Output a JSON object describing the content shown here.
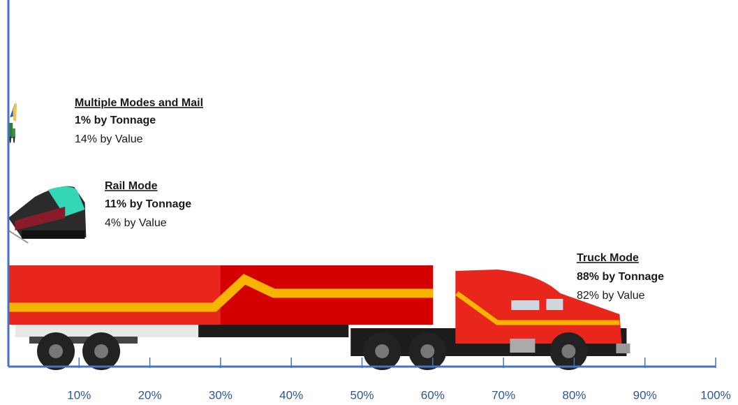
{
  "chart_data": {
    "type": "pictogram",
    "categories": [
      "Multiple Modes and Mail",
      "Rail Mode",
      "Truck Mode"
    ],
    "series": [
      {
        "values": [
          1,
          11,
          88
        ],
        "value_labels": [
          "1% by Tonnage",
          "11% by Tonnage",
          "88% by Tonnage"
        ]
      },
      {
        "values": [
          14,
          4,
          82
        ],
        "value_labels": [
          "14% by Value",
          "4% by Value",
          "82% by Value"
        ]
      }
    ],
    "xlim": [
      0,
      100
    ],
    "xticks": [
      {
        "value": 10,
        "label": "10%"
      },
      {
        "value": 20,
        "label": "20%"
      },
      {
        "value": 30,
        "label": "30%"
      },
      {
        "value": 40,
        "label": "40%"
      },
      {
        "value": 50,
        "label": "50%"
      },
      {
        "value": 60,
        "label": "60%"
      },
      {
        "value": 70,
        "label": "70%"
      },
      {
        "value": 80,
        "label": "80%"
      },
      {
        "value": 90,
        "label": "90%"
      },
      {
        "value": 100,
        "label": "100%"
      }
    ],
    "axis_color": "#4472c4"
  }
}
